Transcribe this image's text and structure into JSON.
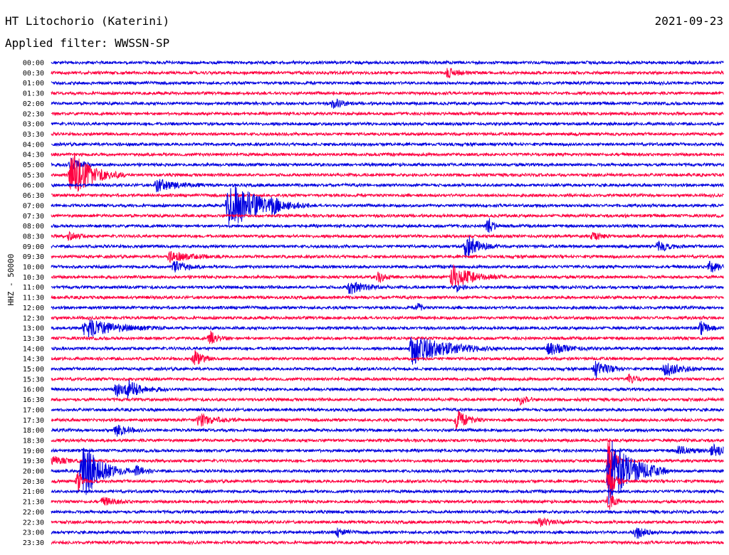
{
  "header": {
    "station": "HT Litochorio (Katerini)",
    "date": "2021-09-23",
    "filter": "Applied filter: WWSSN-SP"
  },
  "colors": {
    "even_row": "#0000e0",
    "odd_row": "#ff0040"
  },
  "chart_data": {
    "type": "line",
    "title": "HT Litochorio (Katerini)",
    "ylabel": "HHZ - 50000",
    "xlabel": "",
    "grid": false,
    "row_minutes": 30,
    "ticks": [
      "00:00",
      "00:30",
      "01:00",
      "01:30",
      "02:00",
      "02:30",
      "03:00",
      "03:30",
      "04:00",
      "04:30",
      "05:00",
      "05:30",
      "06:00",
      "06:30",
      "07:00",
      "07:30",
      "08:00",
      "08:30",
      "09:00",
      "09:30",
      "10:00",
      "10:30",
      "11:00",
      "11:30",
      "12:00",
      "12:30",
      "13:00",
      "13:30",
      "14:00",
      "14:30",
      "15:00",
      "15:30",
      "16:00",
      "16:30",
      "17:00",
      "17:30",
      "18:00",
      "18:30",
      "19:00",
      "19:30",
      "20:00",
      "20:30",
      "21:00",
      "21:30",
      "22:00",
      "22:30",
      "23:00",
      "23:30"
    ],
    "series": [
      {
        "row_label": "00:30",
        "events": [
          {
            "t_min": 17.7,
            "amp": 0.5,
            "dur_min": 0.4
          }
        ]
      },
      {
        "row_label": "02:00",
        "events": [
          {
            "t_min": 12.6,
            "amp": 0.6,
            "dur_min": 0.3
          }
        ]
      },
      {
        "row_label": "05:00",
        "events": [
          {
            "t_min": 0.9,
            "amp": 0.9,
            "dur_min": 0.3
          }
        ]
      },
      {
        "row_label": "05:30",
        "events": [
          {
            "t_min": 0.9,
            "amp": 2.4,
            "dur_min": 0.8
          }
        ]
      },
      {
        "row_label": "06:00",
        "events": [
          {
            "t_min": 4.7,
            "amp": 0.6,
            "dur_min": 0.8
          }
        ]
      },
      {
        "row_label": "07:00",
        "events": [
          {
            "t_min": 7.9,
            "amp": 2.6,
            "dur_min": 1.2
          },
          {
            "t_min": 9.9,
            "amp": 0.5,
            "dur_min": 0.2
          }
        ]
      },
      {
        "row_label": "08:00",
        "events": [
          {
            "t_min": 19.5,
            "amp": 0.9,
            "dur_min": 0.2
          }
        ]
      },
      {
        "row_label": "08:30",
        "events": [
          {
            "t_min": 0.8,
            "amp": 0.5,
            "dur_min": 0.3
          },
          {
            "t_min": 24.2,
            "amp": 0.5,
            "dur_min": 0.3
          }
        ]
      },
      {
        "row_label": "09:00",
        "events": [
          {
            "t_min": 18.5,
            "amp": 1.2,
            "dur_min": 0.5
          },
          {
            "t_min": 27.1,
            "amp": 0.6,
            "dur_min": 0.4
          }
        ]
      },
      {
        "row_label": "09:30",
        "events": [
          {
            "t_min": 5.3,
            "amp": 0.5,
            "dur_min": 0.8
          }
        ]
      },
      {
        "row_label": "10:00",
        "events": [
          {
            "t_min": 5.5,
            "amp": 0.8,
            "dur_min": 0.4
          },
          {
            "t_min": 29.4,
            "amp": 0.6,
            "dur_min": 0.4
          }
        ]
      },
      {
        "row_label": "10:30",
        "events": [
          {
            "t_min": 17.9,
            "amp": 1.2,
            "dur_min": 0.8
          },
          {
            "t_min": 14.6,
            "amp": 0.5,
            "dur_min": 0.3
          }
        ]
      },
      {
        "row_label": "11:00",
        "events": [
          {
            "t_min": 13.3,
            "amp": 0.7,
            "dur_min": 0.6
          },
          {
            "t_min": 18.1,
            "amp": 0.4,
            "dur_min": 0.2
          }
        ]
      },
      {
        "row_label": "12:00",
        "events": [
          {
            "t_min": 16.4,
            "amp": 0.6,
            "dur_min": 0.1
          }
        ]
      },
      {
        "row_label": "13:00",
        "events": [
          {
            "t_min": 1.5,
            "amp": 1.0,
            "dur_min": 1.2
          },
          {
            "t_min": 29.0,
            "amp": 0.6,
            "dur_min": 0.3
          }
        ]
      },
      {
        "row_label": "13:30",
        "events": [
          {
            "t_min": 7.1,
            "amp": 0.7,
            "dur_min": 0.3
          }
        ]
      },
      {
        "row_label": "14:00",
        "events": [
          {
            "t_min": 16.1,
            "amp": 1.6,
            "dur_min": 1.3
          },
          {
            "t_min": 22.2,
            "amp": 0.6,
            "dur_min": 0.7
          }
        ]
      },
      {
        "row_label": "14:30",
        "events": [
          {
            "t_min": 6.4,
            "amp": 0.9,
            "dur_min": 0.3
          }
        ]
      },
      {
        "row_label": "15:00",
        "events": [
          {
            "t_min": 24.3,
            "amp": 0.8,
            "dur_min": 0.5
          },
          {
            "t_min": 27.4,
            "amp": 0.7,
            "dur_min": 0.7
          }
        ]
      },
      {
        "row_label": "15:30",
        "events": [
          {
            "t_min": 25.8,
            "amp": 0.5,
            "dur_min": 0.3
          }
        ]
      },
      {
        "row_label": "16:00",
        "events": [
          {
            "t_min": 2.9,
            "amp": 0.7,
            "dur_min": 0.4
          },
          {
            "t_min": 3.4,
            "amp": 0.8,
            "dur_min": 0.6
          }
        ]
      },
      {
        "row_label": "16:30",
        "events": [
          {
            "t_min": 20.9,
            "amp": 0.5,
            "dur_min": 0.3
          }
        ]
      },
      {
        "row_label": "17:30",
        "events": [
          {
            "t_min": 6.6,
            "amp": 0.7,
            "dur_min": 0.6
          },
          {
            "t_min": 18.1,
            "amp": 1.1,
            "dur_min": 0.4
          }
        ]
      },
      {
        "row_label": "18:00",
        "events": [
          {
            "t_min": 2.9,
            "amp": 0.7,
            "dur_min": 0.4
          }
        ]
      },
      {
        "row_label": "19:00",
        "events": [
          {
            "t_min": 28.0,
            "amp": 0.5,
            "dur_min": 0.5
          },
          {
            "t_min": 29.5,
            "amp": 0.6,
            "dur_min": 0.6
          }
        ]
      },
      {
        "row_label": "19:30",
        "events": [
          {
            "t_min": 0.1,
            "amp": 0.4,
            "dur_min": 0.5
          },
          {
            "t_min": 24.9,
            "amp": 2.6,
            "dur_min": 0.2
          }
        ]
      },
      {
        "row_label": "20:00",
        "events": [
          {
            "t_min": 1.4,
            "amp": 3.0,
            "dur_min": 0.7
          },
          {
            "t_min": 24.9,
            "amp": 3.8,
            "dur_min": 0.9
          },
          {
            "t_min": 3.8,
            "amp": 0.5,
            "dur_min": 0.3
          }
        ]
      },
      {
        "row_label": "20:30",
        "events": [
          {
            "t_min": 1.2,
            "amp": 1.0,
            "dur_min": 0.2
          },
          {
            "t_min": 24.9,
            "amp": 2.0,
            "dur_min": 0.2
          }
        ]
      },
      {
        "row_label": "21:30",
        "events": [
          {
            "t_min": 2.3,
            "amp": 0.4,
            "dur_min": 0.5
          },
          {
            "t_min": 24.9,
            "amp": 1.0,
            "dur_min": 0.2
          }
        ]
      },
      {
        "row_label": "22:30",
        "events": [
          {
            "t_min": 21.8,
            "amp": 0.4,
            "dur_min": 0.6
          }
        ]
      },
      {
        "row_label": "23:00",
        "events": [
          {
            "t_min": 26.1,
            "amp": 0.7,
            "dur_min": 0.4
          },
          {
            "t_min": 12.8,
            "amp": 0.4,
            "dur_min": 0.3
          }
        ]
      }
    ]
  }
}
